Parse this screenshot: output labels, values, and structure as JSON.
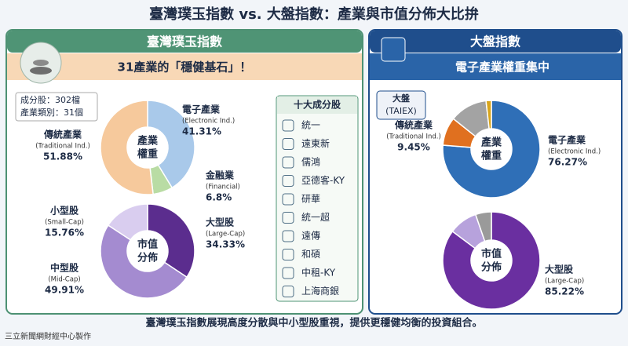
{
  "title": "臺灣璞玉指數 vs. 大盤指數：產業與市值分佈大比拚",
  "left_panel": {
    "header": "臺灣璞玉指數",
    "subheader": "31產業的「穩健基石」！",
    "stats": [
      "成分股：302檔",
      "產業類別：31個"
    ],
    "top10": {
      "title": "十大成分股",
      "items": [
        "統一",
        "遠東新",
        "儒鴻",
        "亞德客-KY",
        "研華",
        "統一超",
        "遠傳",
        "和碩",
        "中租-KY",
        "上海商銀"
      ]
    }
  },
  "right_panel": {
    "header": "大盤指數",
    "subheader": "電子產業權重集中",
    "badge": [
      "大盤",
      "(TAIEX)"
    ]
  },
  "footer": "臺灣璞玉指數展現高度分散與中小型股重視，提供更穩健均衡的投資組合。",
  "credit": "三立新聞網財經中心製作",
  "chart_data": [
    {
      "type": "pie",
      "center_label": [
        "產業",
        "權重"
      ],
      "categories": [
        "電子產業",
        "金融業",
        "傳統產業"
      ],
      "sublabels": [
        "(Electronic Ind.)",
        "(Financial)",
        "(Traditional Ind.)"
      ],
      "values": [
        41.31,
        6.8,
        51.88
      ],
      "value_labels": [
        "41.31%",
        "6.8%",
        "51.88%"
      ],
      "colors": [
        "#a9c9ea",
        "#b9dca4",
        "#f6c99c"
      ]
    },
    {
      "type": "pie",
      "center_label": [
        "市值",
        "分佈"
      ],
      "categories": [
        "大型股",
        "中型股",
        "小型股"
      ],
      "sublabels": [
        "(Large-Cap)",
        "(Mid-Cap)",
        "(Small-Cap)"
      ],
      "values": [
        34.33,
        49.91,
        15.76
      ],
      "value_labels": [
        "34.33%",
        "49.91%",
        "15.76%"
      ],
      "colors": [
        "#5b2d8e",
        "#a48bd0",
        "#d9cdef"
      ]
    },
    {
      "type": "pie",
      "center_label": [
        "產業",
        "權重"
      ],
      "categories": [
        "電子產業",
        "傳統產業",
        null,
        null
      ],
      "sublabels": [
        "(Electronic Ind.)",
        "(Traditional Ind.)",
        null,
        null
      ],
      "values": [
        76.27,
        9.45,
        12.5,
        1.78
      ],
      "value_labels": [
        "76.27%",
        "9.45%",
        null,
        null
      ],
      "colors": [
        "#2f6fb7",
        "#e0701f",
        "#a3a3a3",
        "#d8a51c"
      ]
    },
    {
      "type": "pie",
      "center_label": [
        "市值",
        "分佈"
      ],
      "categories": [
        "大型股",
        null,
        null
      ],
      "sublabels": [
        "(Large-Cap)",
        null,
        null
      ],
      "values": [
        85.22,
        9.5,
        5.28
      ],
      "value_labels": [
        "85.22%",
        null,
        null
      ],
      "colors": [
        "#6a2fa0",
        "#b7a2dc",
        "#9a9a9a"
      ]
    }
  ]
}
